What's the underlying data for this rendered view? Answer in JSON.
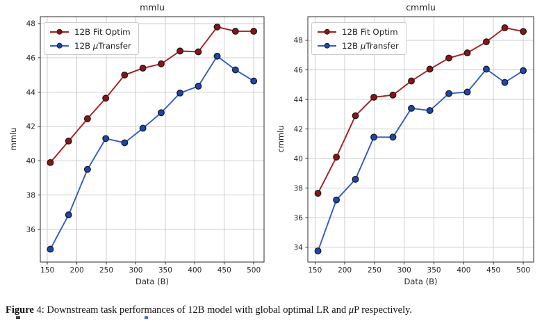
{
  "caption": {
    "figure_label": "Figure",
    "body": " 4: Downstream task performances of 12B model with global optimal LR and ",
    "mu": "μ",
    "tail": "P respectively."
  },
  "legend": {
    "items": [
      {
        "label": "12B Fit Optim",
        "line_color": "#A51D1D",
        "marker_color": "#8F1212"
      },
      {
        "label_pre": "12B ",
        "label_mu": "μ",
        "label_post": "Transfer",
        "label": "12B μTransfer",
        "line_color": "#2E5CC9",
        "marker_color": "#1D47B0"
      }
    ]
  },
  "colors": {
    "red_line": "#A51D1D",
    "red_marker": "#8F1212",
    "blue_line": "#2E5CC9",
    "blue_marker": "#1D47B0",
    "marker_edge": "#1a1a1a",
    "grid": "#cccccc",
    "spine": "#2e2e2e",
    "tick_text": "#262626"
  },
  "chart_data": [
    {
      "type": "line",
      "title": "mmlu",
      "xlabel": "Data (B)",
      "ylabel": "mmlu",
      "x": [
        155,
        186,
        218,
        249,
        281,
        312,
        343,
        375,
        406,
        438,
        469,
        500
      ],
      "series": [
        {
          "name": "12B Fit Optim",
          "color": "#A51D1D",
          "marker_color": "#8F1212",
          "values": [
            39.9,
            41.15,
            42.45,
            43.65,
            45.0,
            45.4,
            45.65,
            46.4,
            46.35,
            47.8,
            47.55,
            47.55
          ]
        },
        {
          "name": "12B μTransfer",
          "color": "#2E5CC9",
          "marker_color": "#1D47B0",
          "values": [
            34.85,
            36.85,
            39.5,
            41.3,
            41.05,
            41.9,
            42.8,
            43.95,
            44.35,
            46.1,
            45.3,
            44.65
          ]
        }
      ],
      "xticks": [
        150,
        200,
        250,
        300,
        350,
        400,
        450,
        500
      ],
      "yticks": [
        36,
        38,
        40,
        42,
        44,
        46,
        48
      ],
      "xlim": [
        138,
        517.5
      ],
      "ylim": [
        34.1,
        48.4
      ],
      "grid": true,
      "legend_position": "upper left"
    },
    {
      "type": "line",
      "title": "cmmlu",
      "xlabel": "Data (B)",
      "ylabel": "cmmlu",
      "x": [
        155,
        186,
        218,
        249,
        281,
        312,
        343,
        375,
        406,
        438,
        469,
        500
      ],
      "series": [
        {
          "name": "12B Fit Optim",
          "color": "#A51D1D",
          "marker_color": "#8F1212",
          "values": [
            37.65,
            40.1,
            42.9,
            44.15,
            44.3,
            45.25,
            46.05,
            46.8,
            47.15,
            47.9,
            48.85,
            48.6
          ]
        },
        {
          "name": "12B μTransfer",
          "color": "#2E5CC9",
          "marker_color": "#1D47B0",
          "values": [
            33.75,
            37.2,
            38.6,
            41.45,
            41.45,
            43.4,
            43.25,
            44.4,
            44.5,
            46.05,
            45.15,
            45.95
          ]
        }
      ],
      "xticks": [
        150,
        200,
        250,
        300,
        350,
        400,
        450,
        500
      ],
      "yticks": [
        34,
        36,
        38,
        40,
        42,
        44,
        46,
        48
      ],
      "xlim": [
        138,
        517.5
      ],
      "ylim": [
        33.0,
        49.6
      ],
      "grid": true,
      "legend_position": "upper left"
    }
  ]
}
